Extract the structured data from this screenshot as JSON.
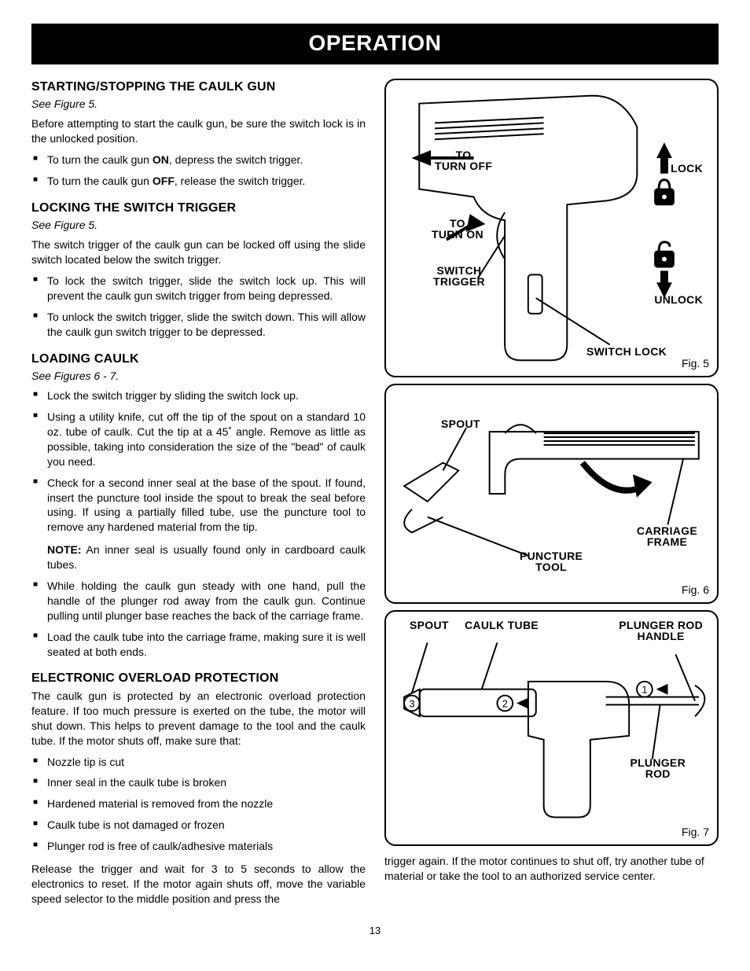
{
  "banner": "OPERATION",
  "page_number": "13",
  "sections": {
    "s1": {
      "title": "STARTING/STOPPING THE CAULK GUN",
      "see": "See Figure 5.",
      "intro": "Before attempting to start the caulk gun, be sure the switch lock is in the unlocked position.",
      "b1a": "To turn the caulk gun ",
      "b1b": "ON",
      "b1c": ", depress the switch trigger.",
      "b2a": "To turn the caulk gun ",
      "b2b": "OFF",
      "b2c": ", release the switch trigger."
    },
    "s2": {
      "title": "LOCKING THE SWITCH TRIGGER",
      "see": "See Figure 5.",
      "intro": "The switch trigger of the caulk gun can be locked off using the slide switch located below the switch trigger.",
      "b1": "To lock the switch trigger, slide the switch lock up. This will prevent the caulk gun switch trigger from being depressed.",
      "b2": "To unlock the switch trigger, slide the switch down. This will allow the caulk gun switch trigger to be depressed."
    },
    "s3": {
      "title": "LOADING CAULK",
      "see": "See Figures 6 - 7.",
      "b1": "Lock the switch trigger by sliding the switch lock up.",
      "b2": "Using a utility knife, cut off the tip of the spout on a standard 10 oz. tube of caulk. Cut the tip at a 45˚ angle. Remove as little as possible, taking into consideration the size of the \"bead\" of caulk you need.",
      "b3": "Check for a second inner seal at the base of the spout. If found, insert the puncture tool inside the spout to break the seal before using. If using a partially filled tube, use the puncture tool to remove any hardened material from the tip.",
      "note_label": "NOTE:",
      "note_text": " An inner seal is usually found only in cardboard caulk tubes.",
      "b4": "While holding the caulk gun steady with one hand, pull the handle of the plunger rod away from the caulk gun. Continue pulling until plunger base reaches the back of the carriage frame.",
      "b5": "Load the caulk tube into the carriage frame, making sure it is well seated at both ends."
    },
    "s4": {
      "title": "ELECTRONIC OVERLOAD PROTECTION",
      "intro": "The caulk gun is protected by an electronic overload protection feature. If too much pressure is exerted on the tube, the motor will shut down. This helps to prevent damage to the tool and the caulk tube. If the motor shuts off, make sure that:",
      "b1": "Nozzle tip is cut",
      "b2": "Inner seal in the caulk tube is broken",
      "b3": "Hardened material is removed from the nozzle",
      "b4": "Caulk tube is not damaged or frozen",
      "b5": "Plunger rod is free of caulk/adhesive materials",
      "outro": "Release the trigger and wait for 3 to 5 seconds to allow the electronics to reset. If the motor again shuts off, move the variable speed selector to the middle position and press the"
    },
    "right_continuation": "trigger again. If the motor continues to shut off, try another tube of material or take the tool to an authorized service center."
  },
  "figures": {
    "f5": {
      "caption": "Fig. 5",
      "labels": {
        "turn_off": "TO\nTURN OFF",
        "turn_on": "TO\nTURN ON",
        "lock": "LOCK",
        "unlock": "UNLOCK",
        "switch_trigger": "SWITCH\nTRIGGER",
        "switch_lock": "SWITCH LOCK"
      }
    },
    "f6": {
      "caption": "Fig. 6",
      "labels": {
        "spout": "SPOUT",
        "puncture_tool": "PUNCTURE\nTOOL",
        "carriage_frame": "CARRIAGE\nFRAME"
      }
    },
    "f7": {
      "caption": "Fig. 7",
      "labels": {
        "spout": "SPOUT",
        "caulk_tube": "CAULK TUBE",
        "plunger_rod_handle": "PLUNGER ROD\nHANDLE",
        "plunger_rod": "PLUNGER\nROD"
      }
    }
  }
}
